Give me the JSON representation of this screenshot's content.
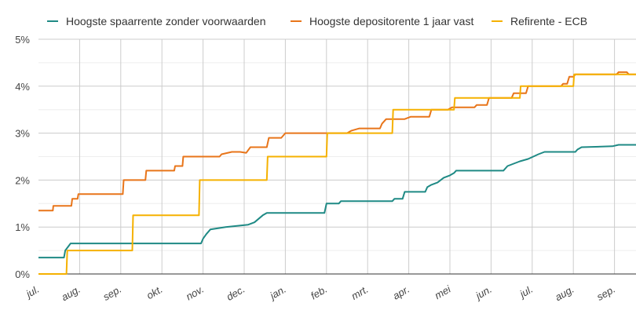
{
  "chart_data": {
    "type": "line",
    "title": "",
    "xlabel": "",
    "ylabel": "",
    "x_tick_labels": [
      "jul.",
      "aug.",
      "sep.",
      "okt.",
      "nov.",
      "dec.",
      "jan.",
      "feb.",
      "mrt.",
      "apr.",
      "mei",
      "jun.",
      "jul.",
      "aug.",
      "sep."
    ],
    "y_tick_labels": [
      "0%",
      "1%",
      "2%",
      "3%",
      "4%",
      "5%"
    ],
    "ylim": [
      0,
      5
    ],
    "y_unit": "%",
    "x_unit": "months since first jul. tick",
    "xlim": [
      0,
      14.8
    ],
    "grid": true,
    "legend_position": "top",
    "series": [
      {
        "name": "Hoogste spaarrente zonder voorwaarden",
        "color": "#1f8a85",
        "points": [
          [
            0,
            0.35
          ],
          [
            0.62,
            0.35
          ],
          [
            0.65,
            0.5
          ],
          [
            0.78,
            0.65
          ],
          [
            3.95,
            0.65
          ],
          [
            4.0,
            0.75
          ],
          [
            4.08,
            0.85
          ],
          [
            4.18,
            0.95
          ],
          [
            4.55,
            1.0
          ],
          [
            5.1,
            1.05
          ],
          [
            5.25,
            1.1
          ],
          [
            5.45,
            1.25
          ],
          [
            5.55,
            1.3
          ],
          [
            6.95,
            1.3
          ],
          [
            7.0,
            1.5
          ],
          [
            7.3,
            1.5
          ],
          [
            7.35,
            1.55
          ],
          [
            8.6,
            1.55
          ],
          [
            8.65,
            1.6
          ],
          [
            8.85,
            1.6
          ],
          [
            8.9,
            1.75
          ],
          [
            9.4,
            1.75
          ],
          [
            9.45,
            1.85
          ],
          [
            9.55,
            1.9
          ],
          [
            9.7,
            1.95
          ],
          [
            9.85,
            2.05
          ],
          [
            10.0,
            2.1
          ],
          [
            10.1,
            2.15
          ],
          [
            10.15,
            2.2
          ],
          [
            11.3,
            2.2
          ],
          [
            11.4,
            2.3
          ],
          [
            11.55,
            2.35
          ],
          [
            11.7,
            2.4
          ],
          [
            11.9,
            2.45
          ],
          [
            12.15,
            2.55
          ],
          [
            12.3,
            2.6
          ],
          [
            13.05,
            2.6
          ],
          [
            13.1,
            2.65
          ],
          [
            13.2,
            2.7
          ],
          [
            13.95,
            2.72
          ],
          [
            14.1,
            2.75
          ],
          [
            14.6,
            2.75
          ],
          [
            14.65,
            2.8
          ],
          [
            14.76,
            2.85
          ],
          [
            14.8,
            3.0
          ]
        ]
      },
      {
        "name": "Hoogste depositorente 1 jaar vast",
        "color": "#e8751a",
        "points": [
          [
            0,
            1.35
          ],
          [
            0.35,
            1.35
          ],
          [
            0.36,
            1.45
          ],
          [
            0.8,
            1.45
          ],
          [
            0.82,
            1.6
          ],
          [
            0.95,
            1.6
          ],
          [
            0.97,
            1.7
          ],
          [
            2.05,
            1.7
          ],
          [
            2.07,
            2.0
          ],
          [
            2.6,
            2.0
          ],
          [
            2.62,
            2.2
          ],
          [
            3.3,
            2.2
          ],
          [
            3.32,
            2.3
          ],
          [
            3.5,
            2.3
          ],
          [
            3.52,
            2.5
          ],
          [
            4.4,
            2.5
          ],
          [
            4.45,
            2.55
          ],
          [
            4.7,
            2.6
          ],
          [
            4.9,
            2.6
          ],
          [
            5.05,
            2.58
          ],
          [
            5.15,
            2.7
          ],
          [
            5.55,
            2.7
          ],
          [
            5.6,
            2.9
          ],
          [
            5.9,
            2.9
          ],
          [
            6.0,
            3.0
          ],
          [
            7.5,
            3.0
          ],
          [
            7.6,
            3.05
          ],
          [
            7.8,
            3.1
          ],
          [
            8.3,
            3.1
          ],
          [
            8.35,
            3.2
          ],
          [
            8.45,
            3.3
          ],
          [
            8.8,
            3.3
          ],
          [
            8.9,
            3.3
          ],
          [
            9.05,
            3.35
          ],
          [
            9.5,
            3.35
          ],
          [
            9.55,
            3.5
          ],
          [
            9.8,
            3.5
          ],
          [
            9.95,
            3.5
          ],
          [
            10.05,
            3.55
          ],
          [
            10.6,
            3.55
          ],
          [
            10.65,
            3.6
          ],
          [
            10.9,
            3.6
          ],
          [
            10.95,
            3.75
          ],
          [
            11.5,
            3.75
          ],
          [
            11.55,
            3.85
          ],
          [
            11.85,
            3.85
          ],
          [
            11.9,
            4.0
          ],
          [
            12.7,
            4.0
          ],
          [
            12.75,
            4.05
          ],
          [
            12.85,
            4.05
          ],
          [
            12.9,
            4.2
          ],
          [
            13.0,
            4.2
          ],
          [
            13.05,
            4.25
          ],
          [
            14.05,
            4.25
          ],
          [
            14.1,
            4.3
          ],
          [
            14.3,
            4.3
          ],
          [
            14.35,
            4.25
          ],
          [
            14.8,
            4.25
          ]
        ]
      },
      {
        "name": "Refirente - ECB",
        "color": "#f5b100",
        "points": [
          [
            0,
            0.0
          ],
          [
            0.68,
            0.0
          ],
          [
            0.7,
            0.5
          ],
          [
            2.28,
            0.5
          ],
          [
            2.3,
            1.25
          ],
          [
            3.9,
            1.25
          ],
          [
            3.92,
            2.0
          ],
          [
            5.55,
            2.0
          ],
          [
            5.57,
            2.5
          ],
          [
            7.0,
            2.5
          ],
          [
            7.02,
            3.0
          ],
          [
            8.6,
            3.0
          ],
          [
            8.62,
            3.5
          ],
          [
            10.1,
            3.5
          ],
          [
            10.12,
            3.75
          ],
          [
            11.7,
            3.75
          ],
          [
            11.72,
            4.0
          ],
          [
            12.9,
            4.0
          ],
          [
            13.0,
            4.0
          ],
          [
            13.02,
            4.25
          ],
          [
            14.55,
            4.25
          ],
          [
            14.57,
            4.5
          ],
          [
            14.8,
            4.5
          ]
        ]
      }
    ]
  }
}
